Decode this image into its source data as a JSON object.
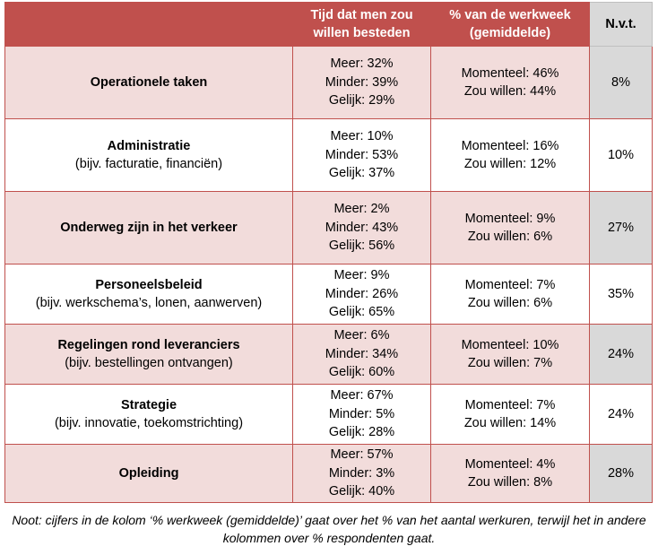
{
  "header": {
    "col1": "",
    "col2": "Tijd dat men zou willen besteden",
    "col3": "% van de werkweek (gemiddelde)",
    "col4": "N.v.t."
  },
  "rows": [
    {
      "name": "Operationele taken",
      "sub": "",
      "meer": "Meer: 32%",
      "minder": "Minder: 39%",
      "gelijk": "Gelijk: 29%",
      "momenteel": "Momenteel: 46%",
      "zou_willen": "Zou willen: 44%",
      "nvt": "8%"
    },
    {
      "name": "Administratie",
      "sub": "(bijv. facturatie, financiën)",
      "meer": "Meer: 10%",
      "minder": "Minder: 53%",
      "gelijk": "Gelijk: 37%",
      "momenteel": "Momenteel: 16%",
      "zou_willen": "Zou willen: 12%",
      "nvt": "10%"
    },
    {
      "name": "Onderweg zijn in het verkeer",
      "sub": "",
      "meer": "Meer: 2%",
      "minder": "Minder: 43%",
      "gelijk": "Gelijk: 56%",
      "momenteel": "Momenteel: 9%",
      "zou_willen": "Zou willen: 6%",
      "nvt": "27%"
    },
    {
      "name": "Personeelsbeleid",
      "sub": "(bijv. werkschema’s, lonen, aanwerven)",
      "meer": "Meer: 9%",
      "minder": "Minder: 26%",
      "gelijk": "Gelijk: 65%",
      "momenteel": "Momenteel: 7%",
      "zou_willen": "Zou willen: 6%",
      "nvt": "35%"
    },
    {
      "name": "Regelingen rond leveranciers",
      "sub": "(bijv. bestellingen ontvangen)",
      "meer": "Meer: 6%",
      "minder": "Minder: 34%",
      "gelijk": "Gelijk: 60%",
      "momenteel": "Momenteel: 10%",
      "zou_willen": "Zou willen: 7%",
      "nvt": "24%"
    },
    {
      "name": "Strategie",
      "sub": "(bijv. innovatie, toekomstrichting)",
      "meer": "Meer: 67%",
      "minder": "Minder: 5%",
      "gelijk": "Gelijk: 28%",
      "momenteel": "Momenteel: 7%",
      "zou_willen": "Zou willen: 14%",
      "nvt": "24%"
    },
    {
      "name": "Opleiding",
      "sub": "",
      "meer": "Meer: 57%",
      "minder": "Minder: 3%",
      "gelijk": "Gelijk: 40%",
      "momenteel": "Momenteel: 4%",
      "zou_willen": "Zou willen: 8%",
      "nvt": "28%"
    }
  ],
  "note": "Noot: cijfers in de kolom ‘% werkweek (gemiddelde)’ gaat over het % van het aantal werkuren, terwijl het in andere kolommen over % respondenten gaat.",
  "colors": {
    "header_bg": "#c0504d",
    "row_odd_bg": "#f2dcdb",
    "row_even_bg": "#ffffff",
    "nvt_bg": "#d9d9d9"
  }
}
